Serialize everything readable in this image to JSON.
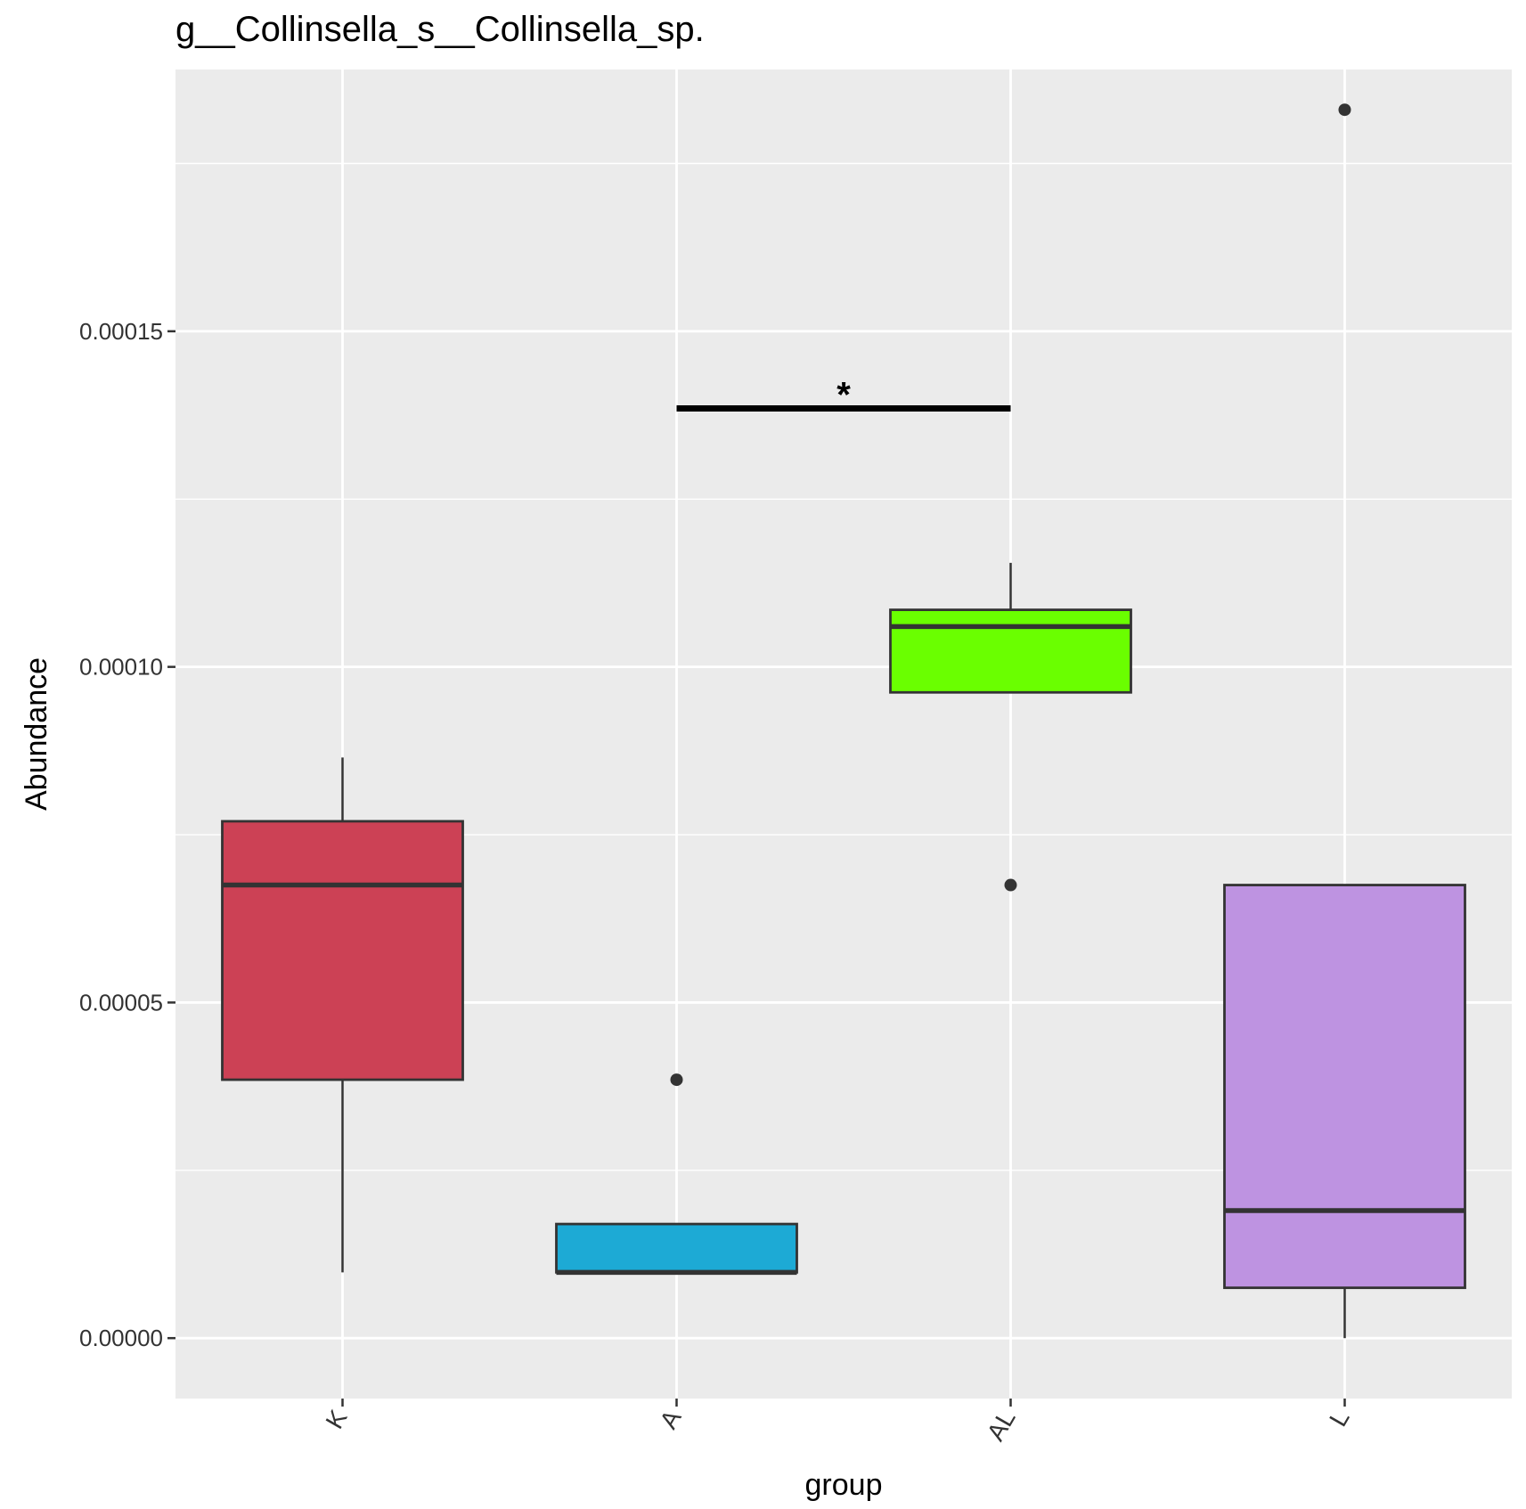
{
  "chart_data": {
    "type": "boxplot",
    "title": "g__Collinsella_s__Collinsella_sp.",
    "xlabel": "group",
    "ylabel": "Abundance",
    "ylim": [
      -9e-06,
      0.000189
    ],
    "yticks": [
      0.0,
      5e-05,
      0.0001,
      0.00015
    ],
    "ytick_labels": [
      "0.00000",
      "0.00005",
      "0.00010",
      "0.00015"
    ],
    "categories": [
      "K",
      "A",
      "AL",
      "L"
    ],
    "boxes": [
      {
        "group": "K",
        "color": "#CC4155",
        "whisker_low": 9.8e-06,
        "q1": 3.85e-05,
        "median": 6.75e-05,
        "q3": 7.7e-05,
        "whisker_high": 8.65e-05,
        "outliers": []
      },
      {
        "group": "A",
        "color": "#1DAAD5",
        "whisker_low": 9.8e-06,
        "q1": 9.8e-06,
        "median": 9.8e-06,
        "q3": 1.7e-05,
        "whisker_high": 1.7e-05,
        "outliers": [
          3.85e-05
        ]
      },
      {
        "group": "AL",
        "color": "#6AFF00",
        "whisker_low": 9.62e-05,
        "q1": 9.62e-05,
        "median": 0.000106,
        "q3": 0.0001085,
        "whisker_high": 0.0001155,
        "outliers": [
          6.75e-05
        ]
      },
      {
        "group": "L",
        "color": "#BE93E1",
        "whisker_low": 0.0,
        "q1": 7.5e-06,
        "median": 1.9e-05,
        "q3": 6.75e-05,
        "whisker_high": 6.75e-05,
        "outliers": [
          0.000183
        ]
      }
    ],
    "significance": [
      {
        "from": "A",
        "to": "AL",
        "y": 0.0001385,
        "label": "*"
      }
    ]
  }
}
